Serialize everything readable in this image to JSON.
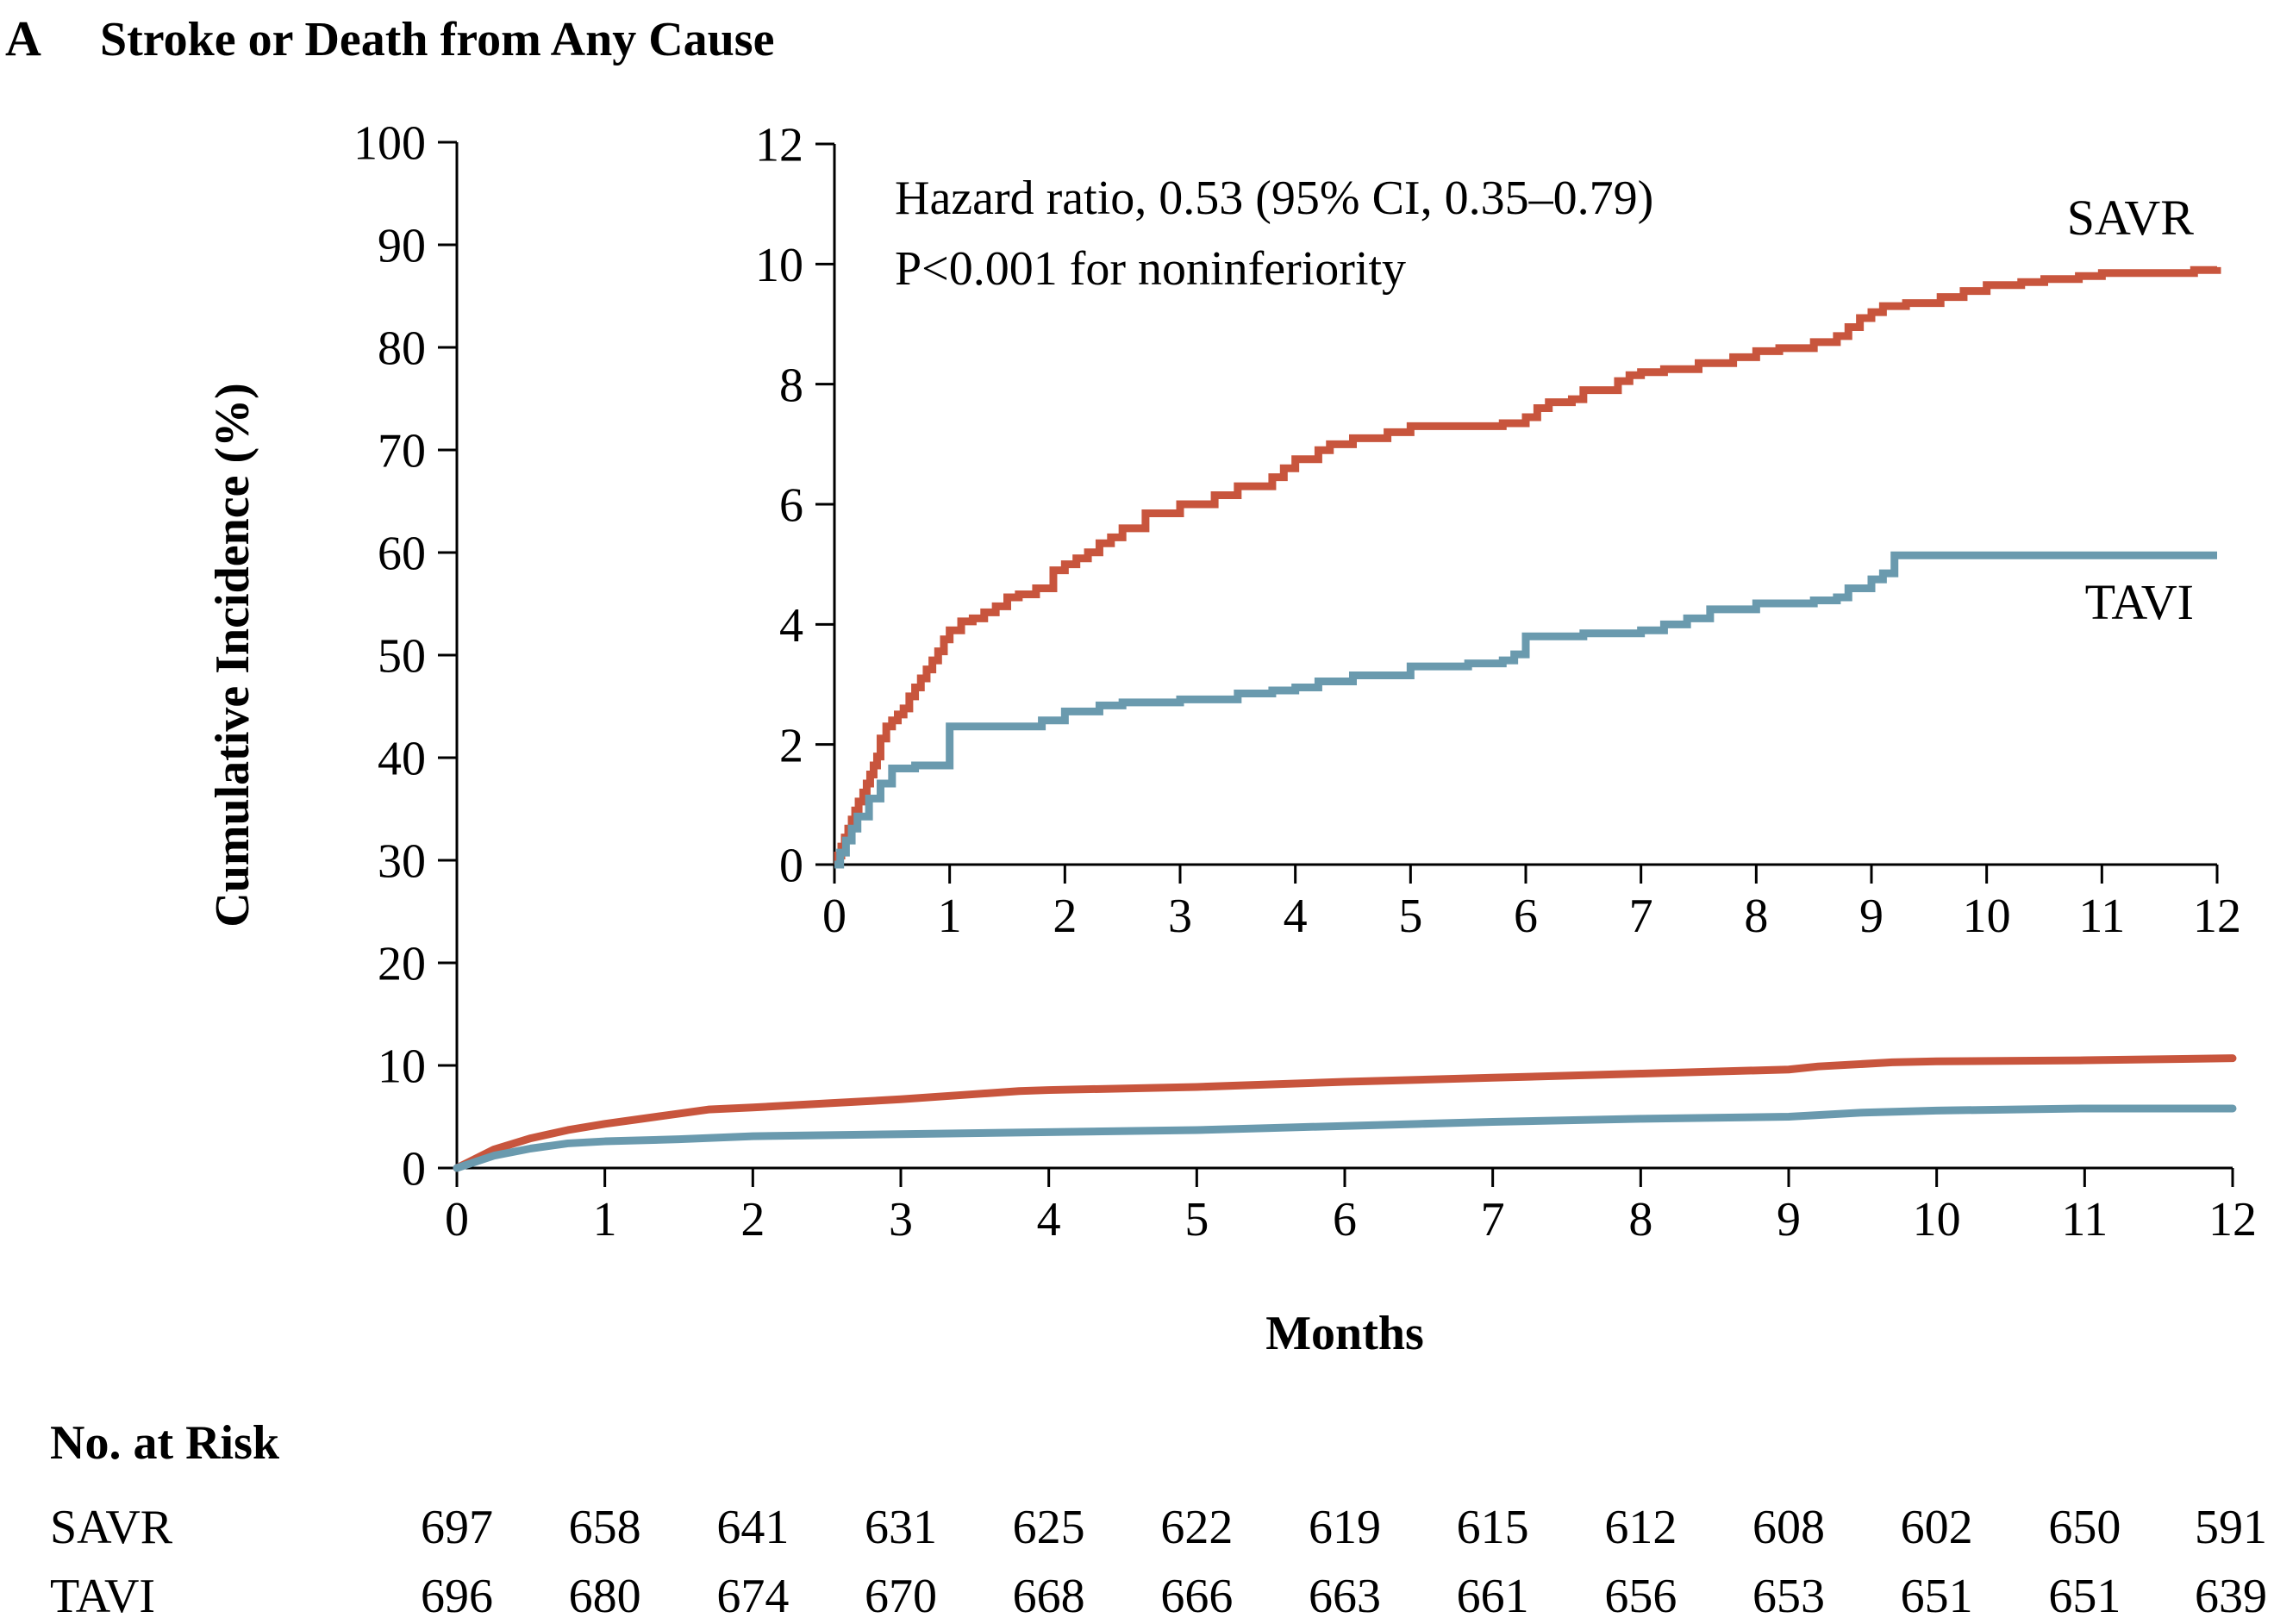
{
  "panel_letter": "A",
  "title": "Stroke or Death from Any Cause",
  "colors": {
    "SAVR": "#C8553D",
    "TAVI": "#6A9AAE",
    "axis": "#000000"
  },
  "chart_data": [
    {
      "id": "main",
      "type": "line",
      "ylabel": "Cumulative Incidence (%)",
      "xlabel": "Months",
      "xlim": [
        0,
        12
      ],
      "ylim": [
        0,
        100
      ],
      "x_ticks": [
        0,
        1,
        2,
        3,
        4,
        5,
        6,
        7,
        8,
        9,
        10,
        11,
        12
      ],
      "y_ticks": [
        0,
        10,
        20,
        30,
        40,
        50,
        60,
        70,
        80,
        90,
        100
      ],
      "grid": false,
      "series": [
        {
          "name": "SAVR",
          "x": [
            0,
            0.25,
            0.5,
            0.75,
            1,
            1.25,
            1.5,
            1.7,
            2,
            2.5,
            3,
            3.5,
            3.8,
            4,
            5,
            6,
            7,
            8,
            9,
            9.2,
            9.7,
            10,
            11,
            12
          ],
          "y": [
            0,
            1.8,
            2.9,
            3.7,
            4.3,
            4.8,
            5.3,
            5.7,
            5.9,
            6.3,
            6.7,
            7.2,
            7.5,
            7.6,
            7.9,
            8.4,
            8.8,
            9.2,
            9.6,
            9.9,
            10.3,
            10.4,
            10.5,
            10.7
          ]
        },
        {
          "name": "TAVI",
          "x": [
            0,
            0.25,
            0.5,
            0.75,
            1,
            1.5,
            2,
            3,
            4,
            5,
            5.5,
            6,
            6.5,
            7,
            8,
            9,
            9.5,
            10,
            11,
            12
          ],
          "y": [
            0,
            1.2,
            1.9,
            2.4,
            2.6,
            2.8,
            3.1,
            3.3,
            3.5,
            3.7,
            3.9,
            4.1,
            4.3,
            4.5,
            4.8,
            5.0,
            5.4,
            5.6,
            5.8,
            5.8
          ]
        }
      ]
    },
    {
      "id": "inset",
      "type": "line",
      "xlim": [
        0,
        12
      ],
      "ylim": [
        0,
        12
      ],
      "x_ticks": [
        0,
        1,
        2,
        3,
        4,
        5,
        6,
        7,
        8,
        9,
        10,
        11,
        12
      ],
      "y_ticks": [
        0,
        2,
        4,
        6,
        8,
        10,
        12
      ],
      "grid": false,
      "annotations": [
        "Hazard ratio, 0.53 (95% CI, 0.35–0.79)",
        "P<0.001 for noninferiority"
      ],
      "series": [
        {
          "name": "SAVR",
          "step": true,
          "x": [
            0,
            0.03,
            0.06,
            0.09,
            0.12,
            0.15,
            0.18,
            0.21,
            0.25,
            0.28,
            0.31,
            0.34,
            0.37,
            0.4,
            0.45,
            0.5,
            0.55,
            0.6,
            0.65,
            0.7,
            0.75,
            0.8,
            0.85,
            0.9,
            0.95,
            1.0,
            1.1,
            1.2,
            1.3,
            1.4,
            1.5,
            1.6,
            1.75,
            1.9,
            2.0,
            2.1,
            2.2,
            2.3,
            2.4,
            2.5,
            2.7,
            3.0,
            3.3,
            3.5,
            3.8,
            3.9,
            4.0,
            4.2,
            4.3,
            4.5,
            4.8,
            5.0,
            5.5,
            5.8,
            6.0,
            6.1,
            6.2,
            6.4,
            6.5,
            6.8,
            6.9,
            7.0,
            7.2,
            7.5,
            7.8,
            8.0,
            8.2,
            8.5,
            8.7,
            8.8,
            8.9,
            9.0,
            9.1,
            9.3,
            9.6,
            9.8,
            10.0,
            10.3,
            10.5,
            10.8,
            11.0,
            11.5,
            11.8,
            12.0
          ],
          "y": [
            0,
            0.15,
            0.3,
            0.45,
            0.6,
            0.75,
            0.9,
            1.05,
            1.2,
            1.35,
            1.5,
            1.65,
            1.8,
            2.1,
            2.3,
            2.4,
            2.5,
            2.6,
            2.8,
            2.95,
            3.1,
            3.25,
            3.4,
            3.55,
            3.75,
            3.9,
            4.05,
            4.1,
            4.2,
            4.3,
            4.45,
            4.5,
            4.6,
            4.9,
            5.0,
            5.1,
            5.2,
            5.35,
            5.45,
            5.6,
            5.85,
            6.0,
            6.15,
            6.3,
            6.45,
            6.6,
            6.75,
            6.9,
            7.0,
            7.1,
            7.2,
            7.3,
            7.3,
            7.35,
            7.45,
            7.6,
            7.7,
            7.75,
            7.9,
            8.05,
            8.15,
            8.2,
            8.25,
            8.35,
            8.45,
            8.55,
            8.6,
            8.7,
            8.8,
            8.95,
            9.1,
            9.2,
            9.3,
            9.35,
            9.45,
            9.55,
            9.65,
            9.7,
            9.75,
            9.8,
            9.85,
            9.85,
            9.9,
            9.95
          ]
        },
        {
          "name": "TAVI",
          "step": true,
          "x": [
            0,
            0.05,
            0.1,
            0.15,
            0.2,
            0.3,
            0.4,
            0.5,
            0.7,
            1.0,
            1.5,
            1.8,
            2.0,
            2.3,
            2.5,
            3.0,
            3.5,
            3.8,
            4.0,
            4.2,
            4.5,
            5.0,
            5.5,
            5.8,
            5.9,
            6.0,
            6.5,
            7.0,
            7.2,
            7.4,
            7.6,
            8.0,
            8.5,
            8.7,
            8.8,
            9.0,
            9.1,
            9.2,
            10.0,
            11.0,
            12.0
          ],
          "y": [
            0,
            0.2,
            0.4,
            0.6,
            0.8,
            1.1,
            1.35,
            1.6,
            1.65,
            2.3,
            2.3,
            2.4,
            2.55,
            2.65,
            2.7,
            2.75,
            2.85,
            2.9,
            2.95,
            3.05,
            3.15,
            3.3,
            3.35,
            3.4,
            3.5,
            3.8,
            3.85,
            3.9,
            4.0,
            4.1,
            4.25,
            4.35,
            4.4,
            4.45,
            4.6,
            4.75,
            4.85,
            5.15,
            5.15,
            5.15,
            5.15
          ]
        }
      ],
      "labels": {
        "SAVR": "SAVR",
        "TAVI": "TAVI"
      }
    }
  ],
  "risk_table": {
    "header": "No. at Risk",
    "rows": [
      {
        "label": "SAVR",
        "values": [
          "697",
          "658",
          "641",
          "631",
          "625",
          "622",
          "619",
          "615",
          "612",
          "608",
          "602",
          "650",
          "591"
        ]
      },
      {
        "label": "TAVI",
        "values": [
          "696",
          "680",
          "674",
          "670",
          "668",
          "666",
          "663",
          "661",
          "656",
          "653",
          "651",
          "651",
          "639"
        ]
      }
    ]
  }
}
